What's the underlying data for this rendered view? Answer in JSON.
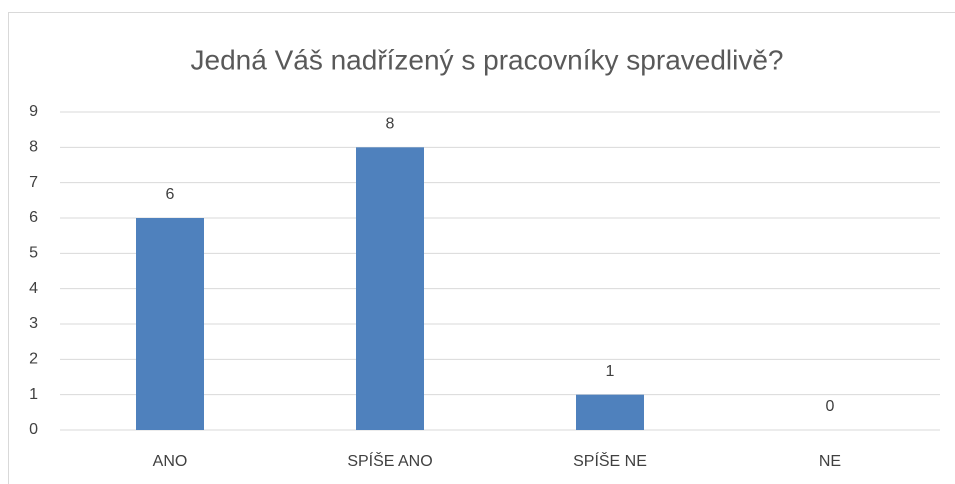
{
  "chart_data": {
    "type": "bar",
    "title": "Jedná Váš nadřízený s pracovníky spravedlivě?",
    "categories": [
      "ANO",
      "SPÍŠE ANO",
      "SPÍŠE NE",
      "NE"
    ],
    "values": [
      6,
      8,
      1,
      0
    ],
    "color": "#4f81bd",
    "ylim": [
      0,
      9
    ],
    "yticks": [
      0,
      1,
      2,
      3,
      4,
      5,
      6,
      7,
      8,
      9
    ],
    "grid": true
  }
}
